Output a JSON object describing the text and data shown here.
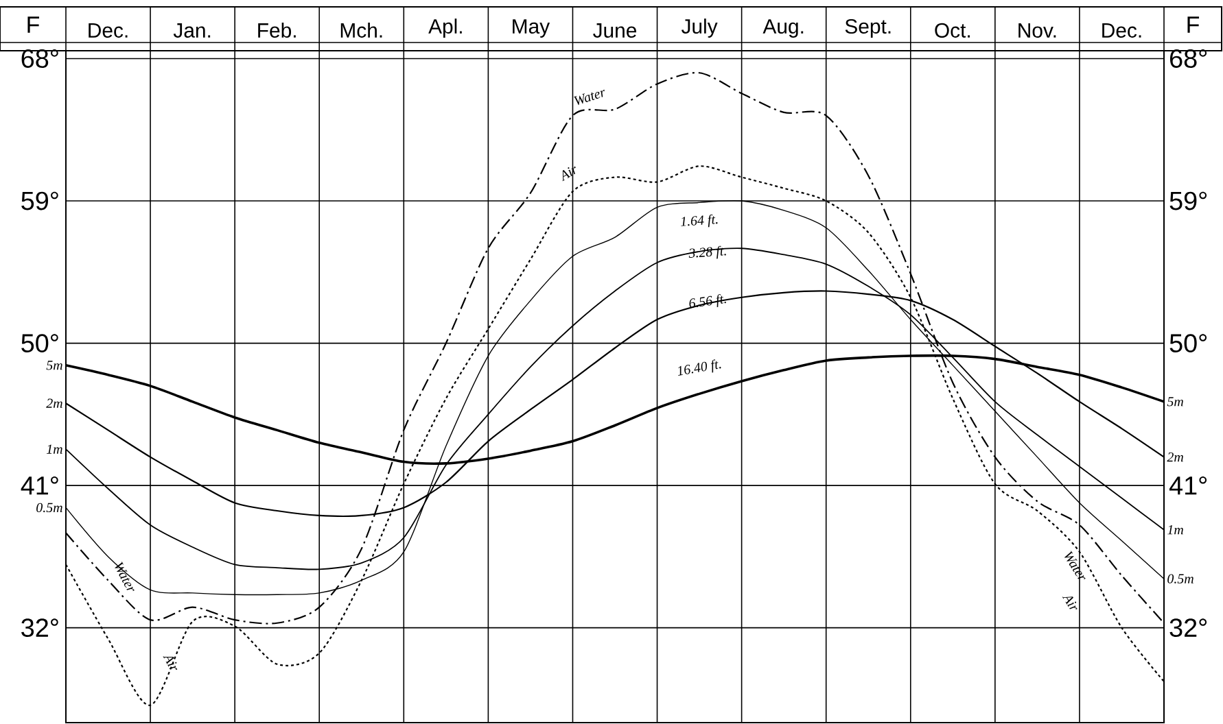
{
  "chart_data": {
    "type": "line",
    "ylabel": "F",
    "y2label": "F",
    "categories": [
      null,
      "Dec.",
      null,
      "Jan.",
      null,
      "Feb.",
      null,
      "Mch.",
      null,
      "Apl.",
      null,
      "May",
      null,
      "June",
      null,
      "July",
      null,
      "Aug.",
      null,
      "Sept.",
      null,
      "Oct.",
      null,
      "Nov.",
      null,
      "Dec.",
      null
    ],
    "ylim": [
      26,
      68.5
    ],
    "yticks": [
      {
        "value": 32,
        "label": "32°"
      },
      {
        "value": 41,
        "label": "41°"
      },
      {
        "value": 50,
        "label": "50°"
      },
      {
        "value": 59,
        "label": "59°"
      },
      {
        "value": 68,
        "label": "68°"
      }
    ],
    "y2lim": [
      26,
      68.5
    ],
    "y2ticks": [
      {
        "value": 32,
        "label": "32°"
      },
      {
        "value": 41,
        "label": "41°"
      },
      {
        "value": 50,
        "label": "50°"
      },
      {
        "value": 59,
        "label": "59°"
      },
      {
        "value": 68,
        "label": "68°"
      }
    ],
    "grid": true,
    "marker": "none",
    "series": [
      {
        "name": "Water",
        "color": "#000000",
        "line_style": "dashed",
        "values": [
          38.0,
          35.0,
          32.5,
          33.3,
          32.5,
          32.3,
          33.3,
          37.0,
          44.5,
          50.0,
          56.0,
          59.5,
          64.4,
          64.8,
          66.4,
          67.1,
          65.8,
          64.6,
          64.4,
          60.6,
          54.4,
          47.5,
          42.8,
          40.0,
          38.5,
          35.3,
          32.3
        ]
      },
      {
        "name": "Air",
        "color": "#000000",
        "line_style": "dotted",
        "values": [
          36.0,
          31.3,
          27.1,
          32.4,
          32.1,
          29.7,
          30.4,
          35.0,
          41.1,
          46.5,
          50.9,
          55.3,
          59.6,
          60.5,
          60.2,
          61.2,
          60.5,
          59.8,
          59.0,
          57.0,
          52.9,
          46.5,
          41.1,
          39.4,
          36.8,
          32.0,
          28.6
        ]
      },
      {
        "name": "1.64 ft.",
        "color": "#000000",
        "line_style": "solid",
        "values": [
          39.6,
          36.5,
          34.4,
          34.2,
          34.1,
          34.1,
          34.2,
          35.0,
          36.8,
          43.5,
          49.2,
          52.7,
          55.5,
          56.7,
          58.6,
          58.9,
          59.0,
          58.4,
          57.3,
          54.6,
          51.5,
          48.6,
          45.7,
          42.8,
          39.9,
          37.5,
          35.1
        ]
      },
      {
        "name": "3.28 ft.",
        "color": "#000000",
        "line_style": "solid",
        "values": [
          43.3,
          40.8,
          38.5,
          37.1,
          36.0,
          35.8,
          35.7,
          36.1,
          37.7,
          42.3,
          45.5,
          48.5,
          51.1,
          53.3,
          55.1,
          55.8,
          56.0,
          55.6,
          55.0,
          53.6,
          51.8,
          49.1,
          46.3,
          44.2,
          42.2,
          40.2,
          38.2
        ]
      },
      {
        "name": "6.56 ft.",
        "color": "#000000",
        "line_style": "solid",
        "values": [
          46.2,
          44.5,
          42.8,
          41.3,
          39.9,
          39.4,
          39.1,
          39.1,
          39.6,
          41.2,
          43.8,
          45.8,
          47.7,
          49.7,
          51.5,
          52.4,
          52.9,
          53.2,
          53.3,
          53.1,
          52.7,
          51.5,
          49.8,
          48.1,
          46.3,
          44.6,
          42.8
        ]
      },
      {
        "name": "16.40 ft.",
        "color": "#000000",
        "line_style": "solid",
        "values": [
          48.6,
          48.0,
          47.3,
          46.3,
          45.3,
          44.5,
          43.7,
          43.1,
          42.5,
          42.4,
          42.7,
          43.2,
          43.8,
          44.8,
          45.9,
          46.8,
          47.6,
          48.3,
          48.9,
          49.1,
          49.2,
          49.2,
          49.0,
          48.5,
          48.0,
          47.2,
          46.3
        ]
      }
    ],
    "annotations": [
      "5m",
      "2m",
      "1m",
      "0.5m",
      "5m",
      "2m",
      "1m",
      "0.5m"
    ]
  }
}
